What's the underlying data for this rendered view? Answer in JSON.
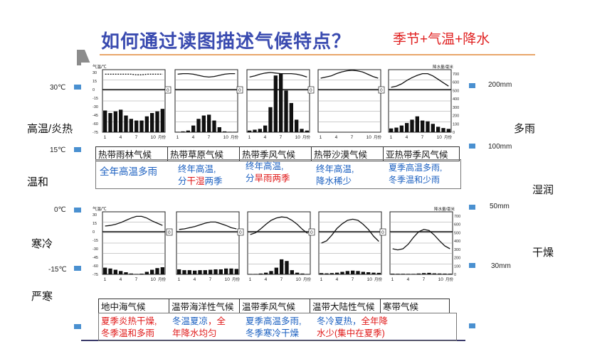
{
  "slide": {
    "title": "如何通过读图描述气候特点？",
    "subtitle": "季节+气温+降水"
  },
  "temp_scale": [
    {
      "label": "30℃"
    },
    {
      "label": "15℃"
    },
    {
      "label": "0℃"
    },
    {
      "label": "-15℃"
    }
  ],
  "precip_scale": [
    {
      "label": "200mm"
    },
    {
      "label": "100mm"
    },
    {
      "label": "50mm"
    },
    {
      "label": "30mm"
    }
  ],
  "temp_words": [
    "高温/炎热",
    "温和",
    "寒冷",
    "严寒"
  ],
  "precip_words": [
    "多雨",
    "湿润",
    "干燥"
  ],
  "axis": {
    "temp_header": "气温/℃",
    "precip_header": "降水量/毫米",
    "month_unit": "月份",
    "zero": "0",
    "months": [
      "1",
      "4",
      "7",
      "10"
    ],
    "temp_ticks": [
      "30",
      "20",
      "10",
      "0",
      "-15",
      "-30",
      "-45",
      "-60",
      "-75"
    ],
    "precip_ticks": [
      "700",
      "600",
      "500",
      "400",
      "300",
      "200",
      "100",
      "0"
    ]
  },
  "colors": {
    "blue_text": "#1a5fc0",
    "red_text": "#e01818",
    "title": "#3a4bb0"
  },
  "row1": {
    "names": [
      "热带雨林气候",
      "热带草原气候",
      "热带季风气候",
      "热带沙漠气候",
      "亚热带季风气候"
    ],
    "descs": [
      {
        "a": "全年高温多雨",
        "b": ""
      },
      {
        "a": "终年高温,",
        "b": "分干湿两季"
      },
      {
        "a": "终年高温,",
        "b": "分旱雨两季"
      },
      {
        "a": "终年高温,",
        "b": "降水稀少"
      },
      {
        "a": "夏季高温多雨,",
        "b": "冬季温和少雨"
      }
    ]
  },
  "row2": {
    "names": [
      "地中海气候",
      "温带海洋性气候",
      "温带季风气候",
      "温带大陆性气候",
      "寒带气候"
    ],
    "descs": [
      {
        "a": "夏季炎热干燥,",
        "b": "冬季温和多雨"
      },
      {
        "a": "冬温夏凉，全",
        "b": "年降水均匀"
      },
      {
        "a": "夏季高温多雨,",
        "b": "冬季寒冷干燥"
      },
      {
        "a": "冬冷夏热，全年降",
        "b": "水少(集中在夏季)"
      },
      {
        "a": "",
        "b": ""
      }
    ]
  },
  "chart_data": [
    {
      "type": "bar",
      "name": "热带雨林气候",
      "temp": [
        27,
        27,
        27,
        27,
        27,
        27,
        26,
        26,
        27,
        27,
        27,
        27
      ],
      "precip": [
        260,
        230,
        250,
        270,
        200,
        160,
        140,
        140,
        190,
        230,
        250,
        280
      ]
    },
    {
      "type": "bar",
      "name": "热带草原气候",
      "temp": [
        27,
        28,
        28,
        27,
        25,
        23,
        22,
        23,
        25,
        27,
        28,
        28
      ],
      "precip": [
        5,
        10,
        20,
        80,
        160,
        200,
        210,
        140,
        60,
        10,
        5,
        5
      ]
    },
    {
      "type": "bar",
      "name": "热带季风气候",
      "temp": [
        22,
        24,
        27,
        29,
        30,
        29,
        28,
        28,
        28,
        27,
        25,
        22
      ],
      "precip": [
        20,
        30,
        40,
        80,
        300,
        680,
        700,
        500,
        350,
        150,
        40,
        20
      ]
    },
    {
      "type": "bar",
      "name": "热带沙漠气候",
      "temp": [
        20,
        22,
        24,
        28,
        31,
        33,
        34,
        33,
        31,
        27,
        23,
        20
      ],
      "precip": [
        0,
        0,
        0,
        0,
        0,
        0,
        0,
        0,
        0,
        0,
        0,
        0
      ]
    },
    {
      "type": "bar",
      "name": "亚热带季风气候",
      "temp": [
        4,
        6,
        10,
        16,
        21,
        25,
        28,
        28,
        24,
        18,
        12,
        6
      ],
      "precip": [
        45,
        55,
        80,
        110,
        150,
        190,
        140,
        130,
        100,
        65,
        50,
        40
      ]
    },
    {
      "type": "bar",
      "name": "地中海气候",
      "temp": [
        10,
        11,
        13,
        16,
        20,
        24,
        27,
        27,
        24,
        19,
        15,
        11
      ],
      "precip": [
        80,
        70,
        55,
        40,
        25,
        10,
        5,
        8,
        30,
        55,
        75,
        85
      ]
    },
    {
      "type": "bar",
      "name": "温带海洋性气候",
      "temp": [
        4,
        5,
        7,
        9,
        12,
        15,
        17,
        17,
        14,
        11,
        7,
        5
      ],
      "precip": [
        60,
        50,
        50,
        45,
        50,
        50,
        55,
        60,
        60,
        70,
        70,
        65
      ]
    },
    {
      "type": "bar",
      "name": "温带季风气候",
      "temp": [
        -5,
        -2,
        5,
        13,
        20,
        24,
        26,
        25,
        20,
        13,
        4,
        -3
      ],
      "precip": [
        5,
        5,
        10,
        20,
        40,
        80,
        180,
        160,
        50,
        20,
        10,
        5
      ]
    },
    {
      "type": "bar",
      "name": "温带大陆性气候",
      "temp": [
        -20,
        -16,
        -6,
        6,
        14,
        20,
        22,
        20,
        13,
        4,
        -8,
        -17
      ],
      "precip": [
        15,
        12,
        15,
        20,
        30,
        40,
        45,
        40,
        30,
        25,
        20,
        18
      ]
    },
    {
      "type": "bar",
      "name": "寒带气候",
      "temp": [
        -30,
        -32,
        -30,
        -22,
        -10,
        0,
        4,
        2,
        -6,
        -16,
        -25,
        -30
      ],
      "precip": [
        8,
        7,
        7,
        6,
        6,
        10,
        15,
        18,
        12,
        10,
        9,
        8
      ]
    }
  ]
}
